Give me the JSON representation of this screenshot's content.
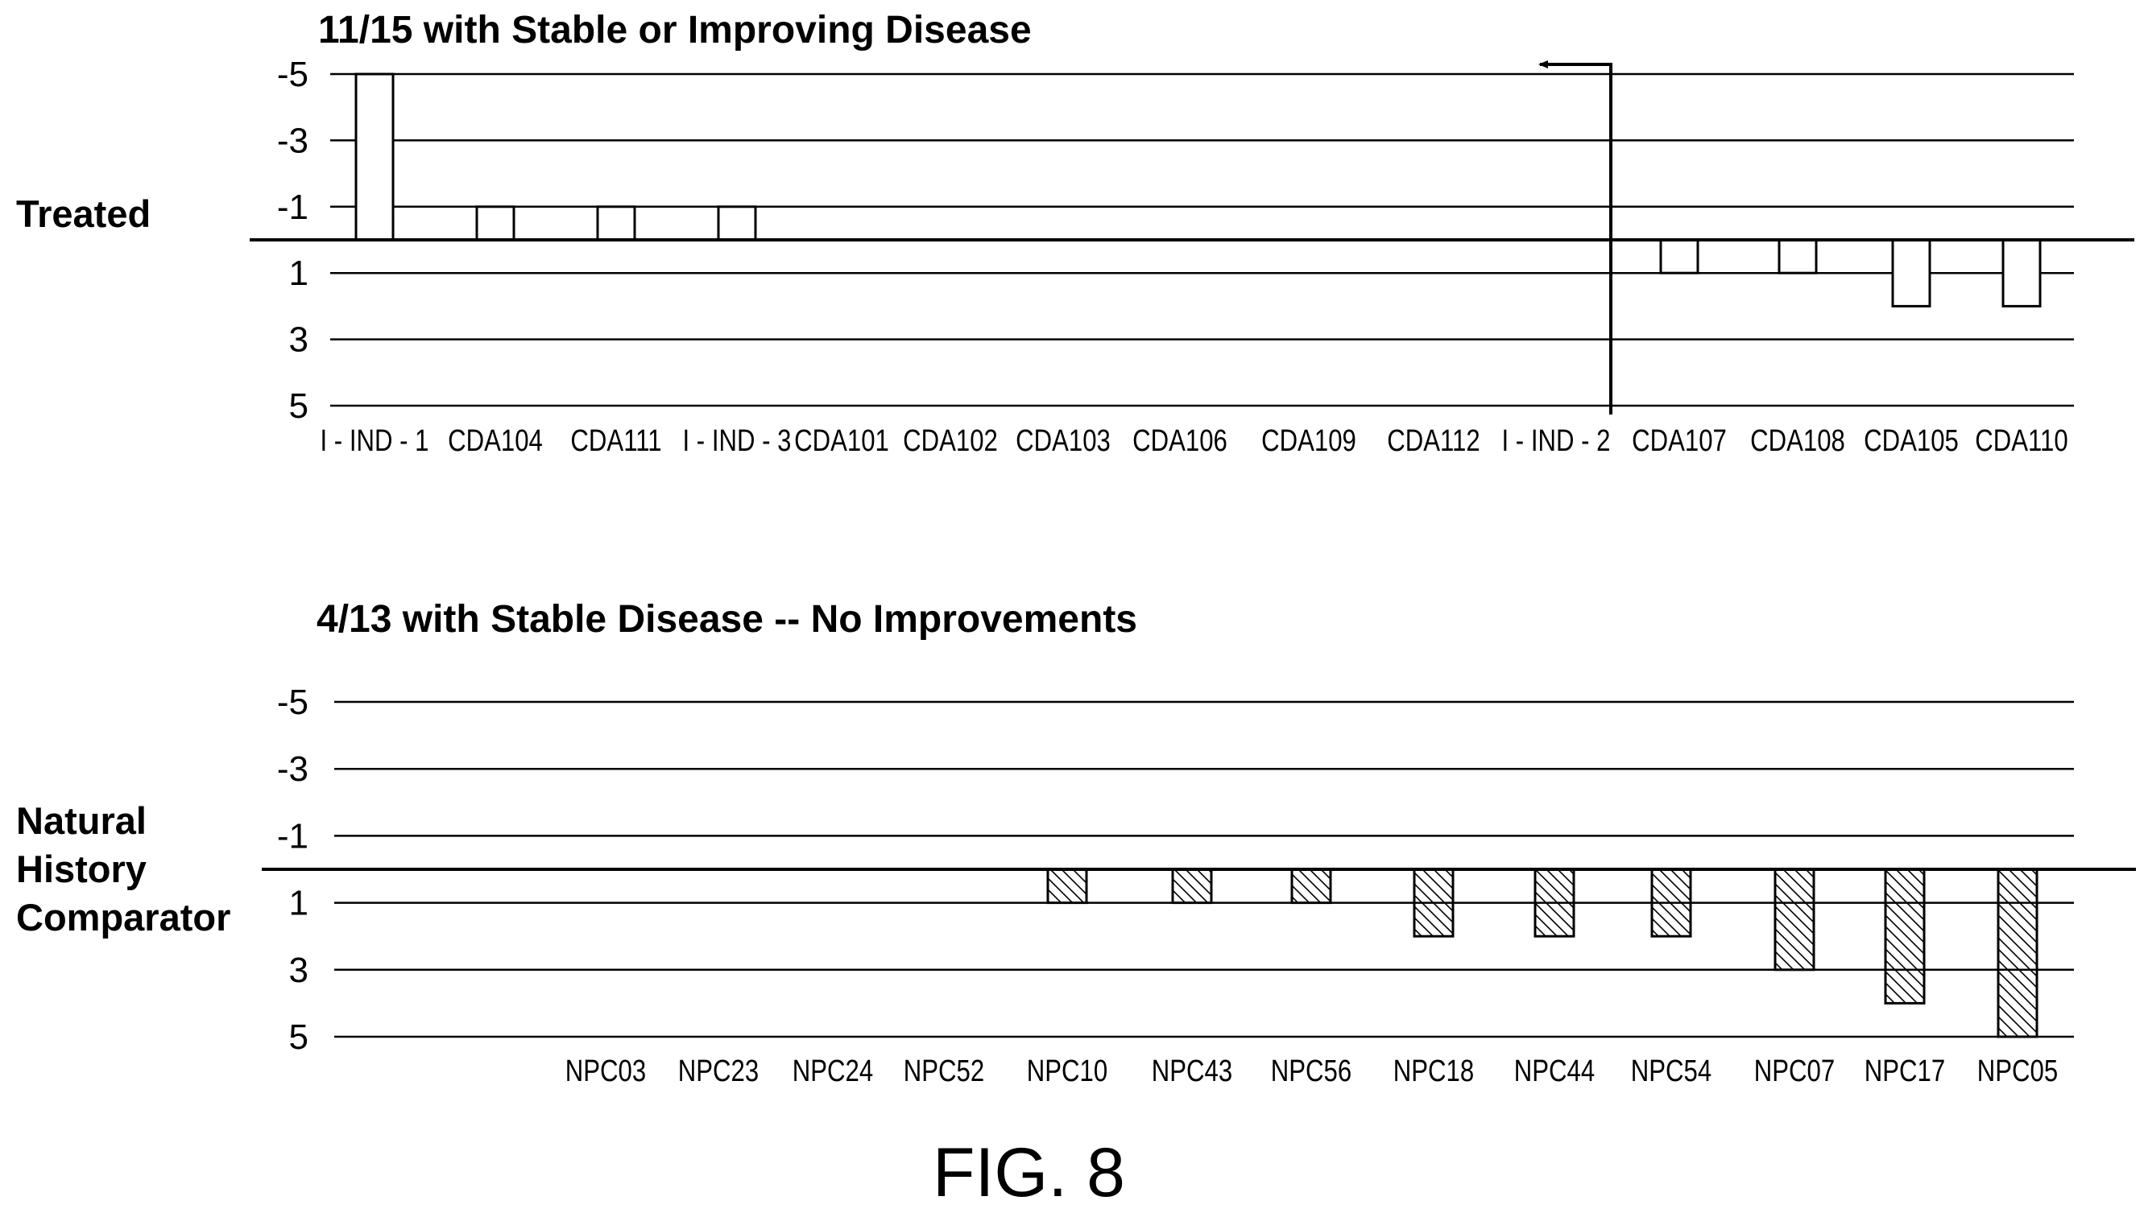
{
  "figure_label": "FIG. 8",
  "chart_data": [
    {
      "type": "bar",
      "title": "11/15 with Stable or Improving Disease",
      "row_label": [
        "Treated"
      ],
      "categories": [
        "I - IND - 1",
        "CDA104",
        "CDA111",
        "I - IND - 3",
        "CDA101",
        "CDA102",
        "CDA103",
        "CDA106",
        "CDA109",
        "CDA112",
        "I - IND - 2",
        "CDA107",
        "CDA108",
        "CDA105",
        "CDA110"
      ],
      "values": [
        -5,
        -1,
        -1,
        -1,
        0,
        0,
        0,
        0,
        0,
        0,
        0,
        1,
        1,
        2,
        2
      ],
      "y_ticks": [
        -5,
        -3,
        -1,
        1,
        3,
        5
      ],
      "ylim": [
        -5,
        5
      ],
      "y_inverted": true,
      "bar_fill": "none",
      "grid": true,
      "annotation": "arrow-left-at-I-IND-2"
    },
    {
      "type": "bar",
      "title": "4/13 with Stable Disease -- No Improvements",
      "row_label": [
        "Natural",
        "History",
        "Comparator"
      ],
      "categories": [
        "NPC03",
        "NPC23",
        "NPC24",
        "NPC52",
        "NPC10",
        "NPC43",
        "NPC56",
        "NPC18",
        "NPC44",
        "NPC54",
        "NPC07",
        "NPC17",
        "NPC05"
      ],
      "values": [
        0,
        0,
        0,
        0,
        1,
        1,
        1,
        2,
        2,
        2,
        3,
        4,
        5
      ],
      "y_ticks": [
        -5,
        -3,
        -1,
        1,
        3,
        5
      ],
      "ylim": [
        -5,
        5
      ],
      "y_inverted": true,
      "bar_fill": "hatched",
      "grid": true
    }
  ]
}
